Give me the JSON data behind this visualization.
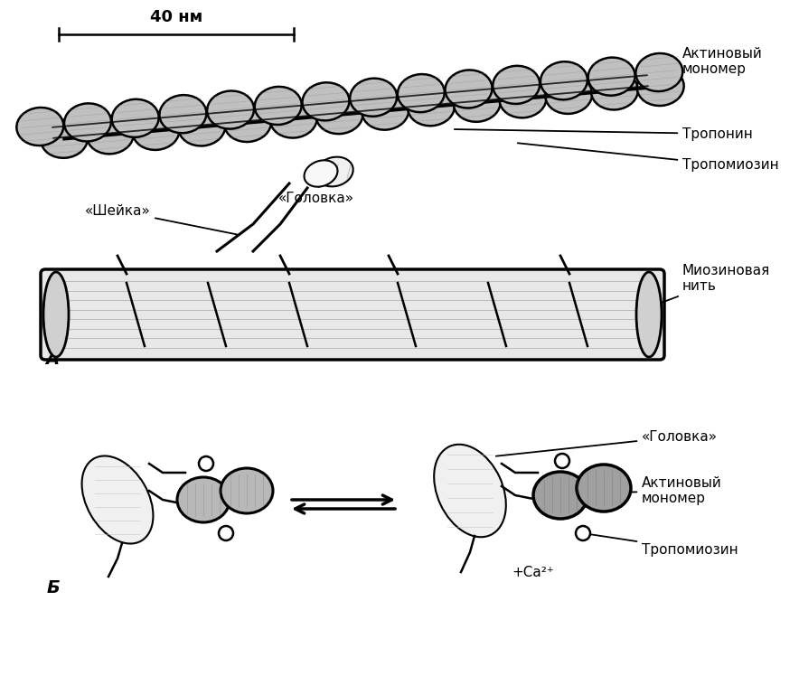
{
  "bg_color": "#ffffff",
  "lc": "#000000",
  "actin_fill": "#c0c0c0",
  "actin_fill_dark": "#a0a0a0",
  "actin_edge": "#000000",
  "myosin_fill": "#e0e0e0",
  "label_actin_monomer": "Актиновый\nмономер",
  "label_troponin": "Тропонин",
  "label_tropomyosin": "Тропомиозин",
  "label_myosin_thread": "Миозиновая\nнить",
  "label_sheika": "«Шейка»",
  "label_golovka_A": "«Головка»",
  "label_40nm": "40 нм",
  "label_A": "А",
  "label_B": "Б",
  "label_golovka_B": "«Головка»",
  "label_actin_B": "Актиновый\nмономер",
  "label_tropomyosin_B": "Тропомиозин",
  "label_ca": "+Ca²⁺"
}
